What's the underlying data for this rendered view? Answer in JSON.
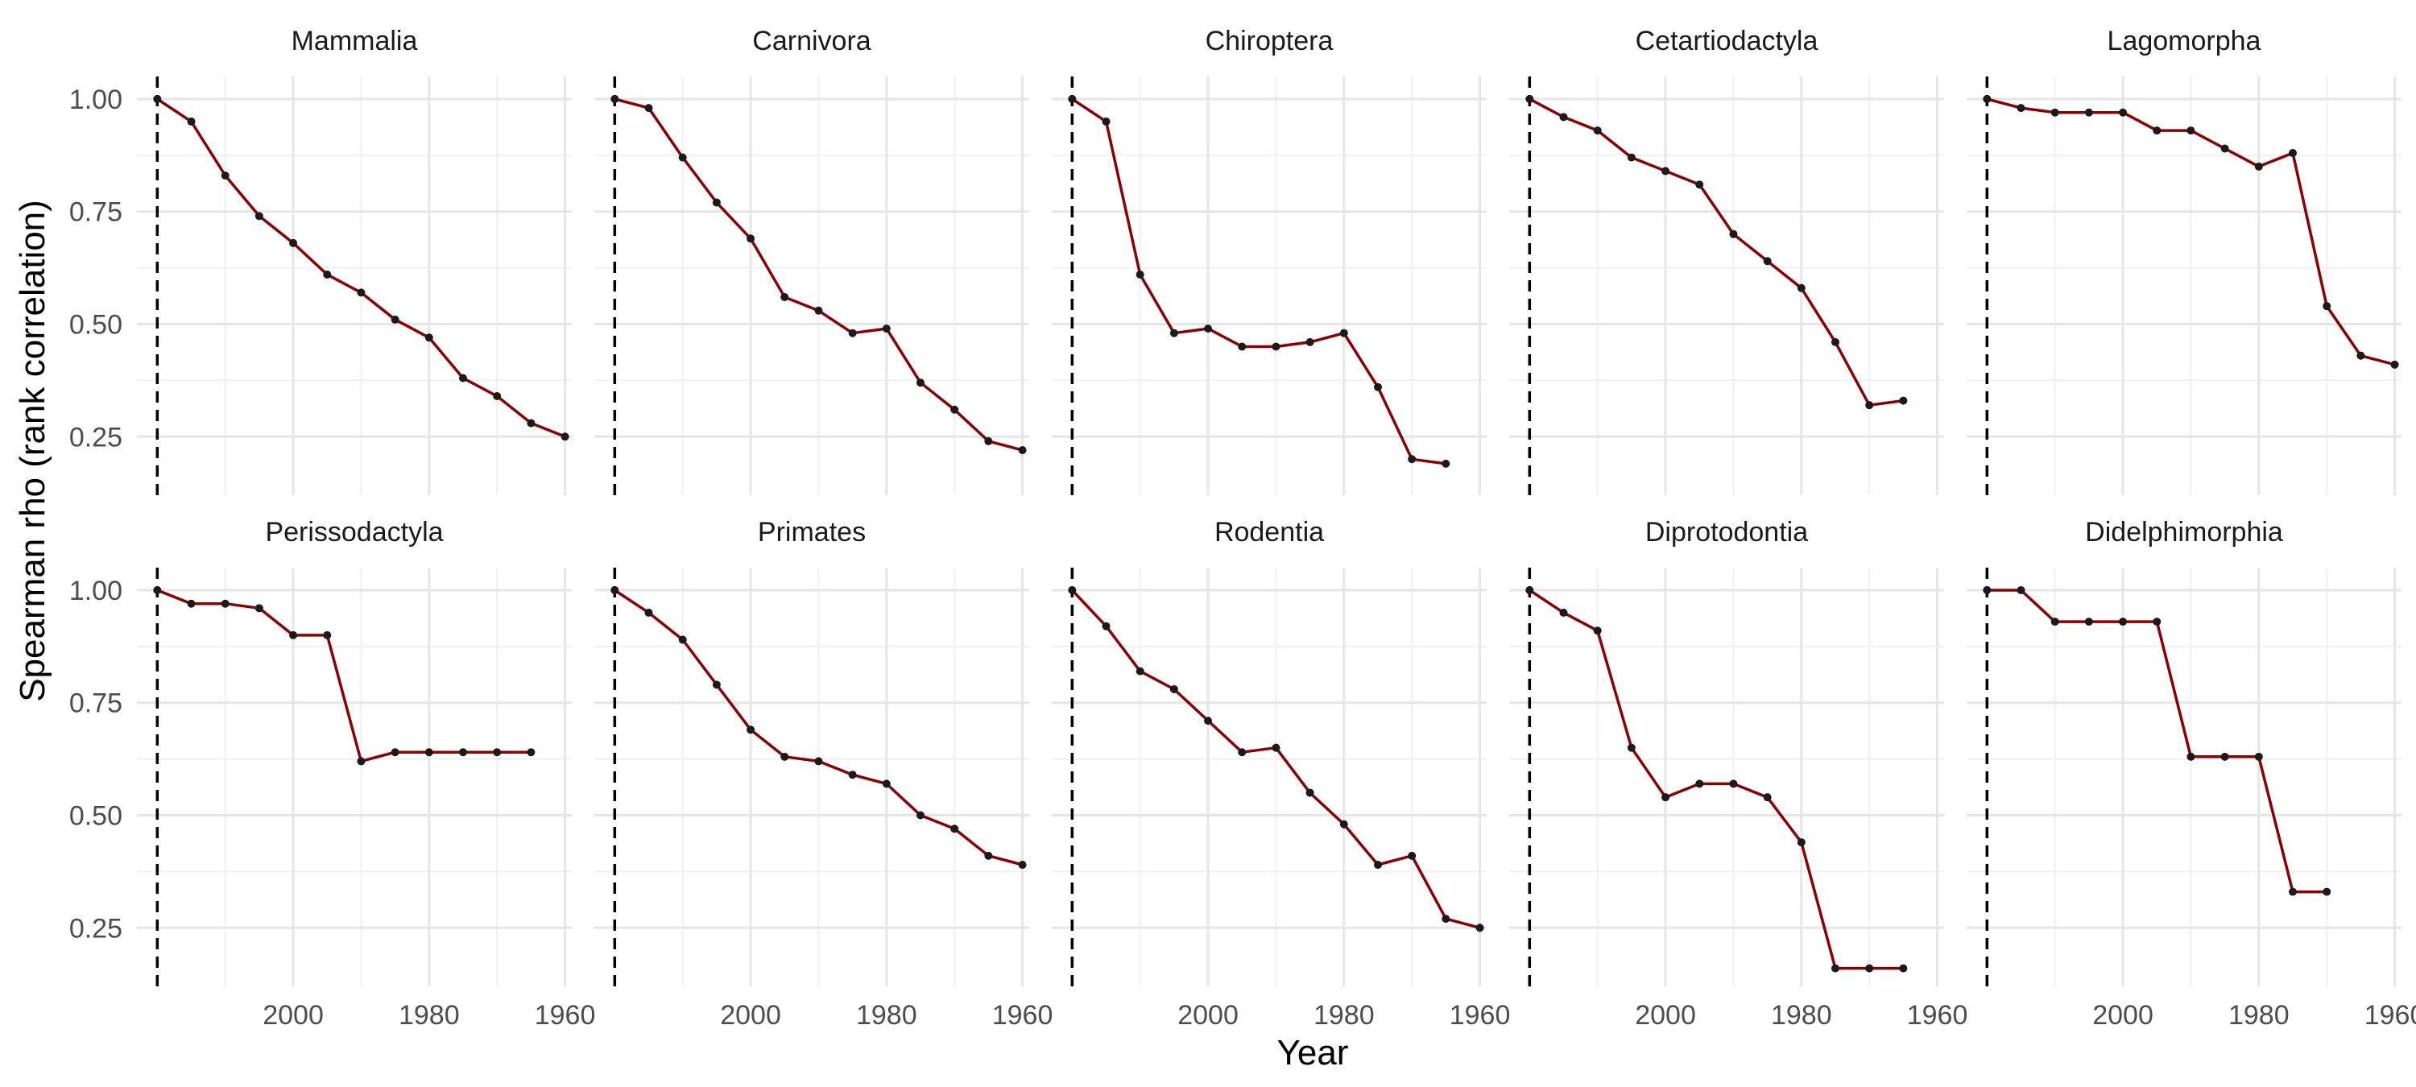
{
  "chart_data": {
    "type": "line",
    "layout": "facet-grid",
    "xlabel": "Year",
    "ylabel": "Spearman rho (rank correlation)",
    "xlim": [
      2023,
      1959
    ],
    "ylim": [
      0.12,
      1.05
    ],
    "x_reversed": true,
    "x_ticks": [
      2000,
      1980,
      1960
    ],
    "y_ticks": [
      0.25,
      0.5,
      0.75,
      1.0
    ],
    "y_tick_labels": [
      "0.25",
      "0.50",
      "0.75",
      "1.00"
    ],
    "grid": true,
    "reference_line": {
      "x": 2020,
      "style": "dashed",
      "color": "#000000"
    },
    "line_color": "#8b0000",
    "point_color": "#1a1a1a",
    "panels": [
      {
        "title": "Mammalia",
        "x": [
          2020,
          2015,
          2010,
          2005,
          2000,
          1995,
          1990,
          1985,
          1980,
          1975,
          1970,
          1965,
          1960
        ],
        "y": [
          1.0,
          0.95,
          0.83,
          0.74,
          0.68,
          0.61,
          0.57,
          0.51,
          0.47,
          0.38,
          0.34,
          0.28,
          0.25
        ]
      },
      {
        "title": "Carnivora",
        "x": [
          2020,
          2015,
          2010,
          2005,
          2000,
          1995,
          1990,
          1985,
          1980,
          1975,
          1970,
          1965,
          1960
        ],
        "y": [
          1.0,
          0.98,
          0.87,
          0.77,
          0.69,
          0.56,
          0.53,
          0.48,
          0.49,
          0.37,
          0.31,
          0.24,
          0.22
        ]
      },
      {
        "title": "Chiroptera",
        "x": [
          2020,
          2015,
          2010,
          2005,
          2000,
          1995,
          1990,
          1985,
          1980,
          1975,
          1970,
          1965
        ],
        "y": [
          1.0,
          0.95,
          0.61,
          0.48,
          0.49,
          0.45,
          0.45,
          0.46,
          0.48,
          0.36,
          0.2,
          0.19
        ]
      },
      {
        "title": "Cetartiodactyla",
        "x": [
          2020,
          2015,
          2010,
          2005,
          2000,
          1995,
          1990,
          1985,
          1980,
          1975,
          1970,
          1965
        ],
        "y": [
          1.0,
          0.96,
          0.93,
          0.87,
          0.84,
          0.81,
          0.7,
          0.64,
          0.58,
          0.46,
          0.32,
          0.33
        ]
      },
      {
        "title": "Lagomorpha",
        "x": [
          2020,
          2015,
          2010,
          2005,
          2000,
          1995,
          1990,
          1985,
          1980,
          1975,
          1970,
          1965,
          1960
        ],
        "y": [
          1.0,
          0.98,
          0.97,
          0.97,
          0.97,
          0.93,
          0.93,
          0.89,
          0.85,
          0.88,
          0.54,
          0.43,
          0.41
        ]
      },
      {
        "title": "Perissodactyla",
        "x": [
          2020,
          2015,
          2010,
          2005,
          2000,
          1995,
          1990,
          1985,
          1980,
          1975,
          1970,
          1965
        ],
        "y": [
          1.0,
          0.97,
          0.97,
          0.96,
          0.9,
          0.9,
          0.62,
          0.64,
          0.64,
          0.64,
          0.64,
          0.64
        ]
      },
      {
        "title": "Primates",
        "x": [
          2020,
          2015,
          2010,
          2005,
          2000,
          1995,
          1990,
          1985,
          1980,
          1975,
          1970,
          1965,
          1960
        ],
        "y": [
          1.0,
          0.95,
          0.89,
          0.79,
          0.69,
          0.63,
          0.62,
          0.59,
          0.57,
          0.5,
          0.47,
          0.41,
          0.39
        ]
      },
      {
        "title": "Rodentia",
        "x": [
          2020,
          2015,
          2010,
          2005,
          2000,
          1995,
          1990,
          1985,
          1980,
          1975,
          1970,
          1965,
          1960
        ],
        "y": [
          1.0,
          0.92,
          0.82,
          0.78,
          0.71,
          0.64,
          0.65,
          0.55,
          0.48,
          0.39,
          0.41,
          0.27,
          0.25
        ]
      },
      {
        "title": "Diprotodontia",
        "x": [
          2020,
          2015,
          2010,
          2005,
          2000,
          1995,
          1990,
          1985,
          1980,
          1975,
          1970,
          1965
        ],
        "y": [
          1.0,
          0.95,
          0.91,
          0.65,
          0.54,
          0.57,
          0.57,
          0.54,
          0.44,
          0.16,
          0.16,
          0.16
        ]
      },
      {
        "title": "Didelphimorphia",
        "x": [
          2020,
          2015,
          2010,
          2005,
          2000,
          1995,
          1990,
          1985,
          1980,
          1975,
          1970
        ],
        "y": [
          1.0,
          1.0,
          0.93,
          0.93,
          0.93,
          0.93,
          0.63,
          0.63,
          0.63,
          0.33,
          0.33
        ]
      }
    ]
  }
}
